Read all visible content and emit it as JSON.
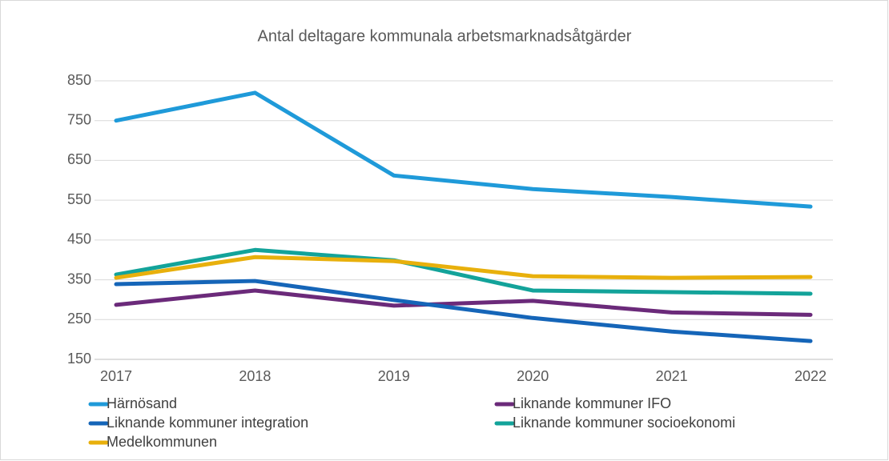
{
  "chart_data": {
    "type": "line",
    "title": "Antal deltagare kommunala arbetsmarknadsåtgärder",
    "categories": [
      "2017",
      "2018",
      "2019",
      "2020",
      "2021",
      "2022"
    ],
    "series": [
      {
        "name": "Härnösand",
        "color": "#1f9ad9",
        "values": [
          750,
          820,
          612,
          578,
          558,
          534
        ]
      },
      {
        "name": "Liknande kommuner IFO",
        "color": "#6b2a7a",
        "values": [
          287,
          323,
          285,
          297,
          268,
          262
        ]
      },
      {
        "name": "Liknande kommuner integration",
        "color": "#1565b8",
        "values": [
          339,
          347,
          299,
          254,
          220,
          196
        ]
      },
      {
        "name": "Liknande kommuner socioekonomi",
        "color": "#13a39a",
        "values": [
          363,
          425,
          399,
          323,
          319,
          315
        ]
      },
      {
        "name": "Medelkommunen",
        "color": "#e8b00c",
        "values": [
          355,
          407,
          397,
          359,
          355,
          357
        ]
      }
    ],
    "ylim": [
      150,
      850
    ],
    "yticks": [
      150,
      250,
      350,
      450,
      550,
      650,
      750,
      850
    ],
    "grid": true
  }
}
